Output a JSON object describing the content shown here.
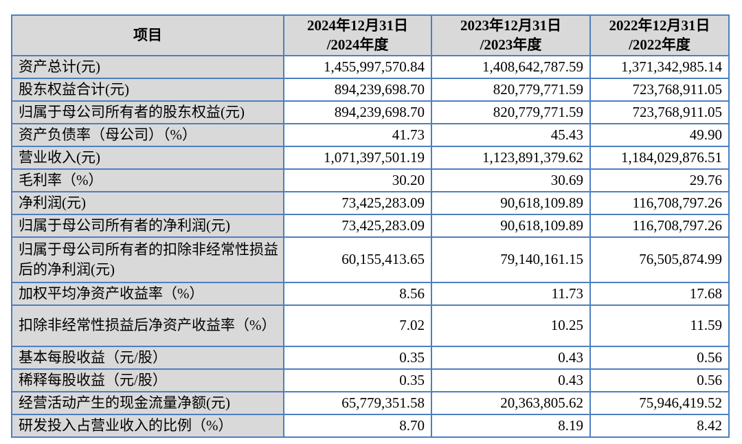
{
  "table": {
    "border_color": "#4d7ebf",
    "header_bg": "#d9d9d9",
    "label_bg": "#d9d9d9",
    "header": {
      "item_label": "项目",
      "columns": [
        {
          "line1": "2024年12月31日",
          "line2": "/2024年度"
        },
        {
          "line1": "2023年12月31日",
          "line2": "/2023年度"
        },
        {
          "line1": "2022年12月31日",
          "line2": "/2022年度"
        }
      ]
    },
    "rows": [
      {
        "label": "资产总计(元)",
        "values": [
          "1,455,997,570.84",
          "1,408,642,787.59",
          "1,371,342,985.14"
        ]
      },
      {
        "label": "股东权益合计(元)",
        "values": [
          "894,239,698.70",
          "820,779,771.59",
          "723,768,911.05"
        ]
      },
      {
        "label": "归属于母公司所有者的股东权益(元)",
        "values": [
          "894,239,698.70",
          "820,779,771.59",
          "723,768,911.05"
        ]
      },
      {
        "label": "资产负债率（母公司）（%）",
        "values": [
          "41.73",
          "45.43",
          "49.90"
        ]
      },
      {
        "label": "营业收入(元)",
        "values": [
          "1,071,397,501.19",
          "1,123,891,379.62",
          "1,184,029,876.51"
        ]
      },
      {
        "label": "毛利率（%）",
        "values": [
          "30.20",
          "30.69",
          "29.76"
        ]
      },
      {
        "label": "净利润(元)",
        "values": [
          "73,425,283.09",
          "90,618,109.89",
          "116,708,797.26"
        ]
      },
      {
        "label": "归属于母公司所有者的净利润(元)",
        "values": [
          "73,425,283.09",
          "90,618,109.89",
          "116,708,797.26"
        ]
      },
      {
        "label": "归属于母公司所有者的扣除非经常性损益后的净利润(元)",
        "values": [
          "60,155,413.65",
          "79,140,161.15",
          "76,505,874.99"
        ]
      },
      {
        "label": "加权平均净资产收益率（%）",
        "values": [
          "8.56",
          "11.73",
          "17.68"
        ]
      },
      {
        "label": "扣除非经常性损益后净资产收益率（%）",
        "values": [
          "7.02",
          "10.25",
          "11.59"
        ]
      },
      {
        "label": "基本每股收益（元/股）",
        "values": [
          "0.35",
          "0.43",
          "0.56"
        ]
      },
      {
        "label": "稀释每股收益（元/股）",
        "values": [
          "0.35",
          "0.43",
          "0.56"
        ]
      },
      {
        "label": "经营活动产生的现金流量净额(元)",
        "values": [
          "65,779,351.58",
          "20,363,805.62",
          "75,946,419.52"
        ]
      },
      {
        "label": "研发投入占营业收入的比例（%）",
        "values": [
          "8.70",
          "8.19",
          "8.42"
        ]
      }
    ]
  }
}
